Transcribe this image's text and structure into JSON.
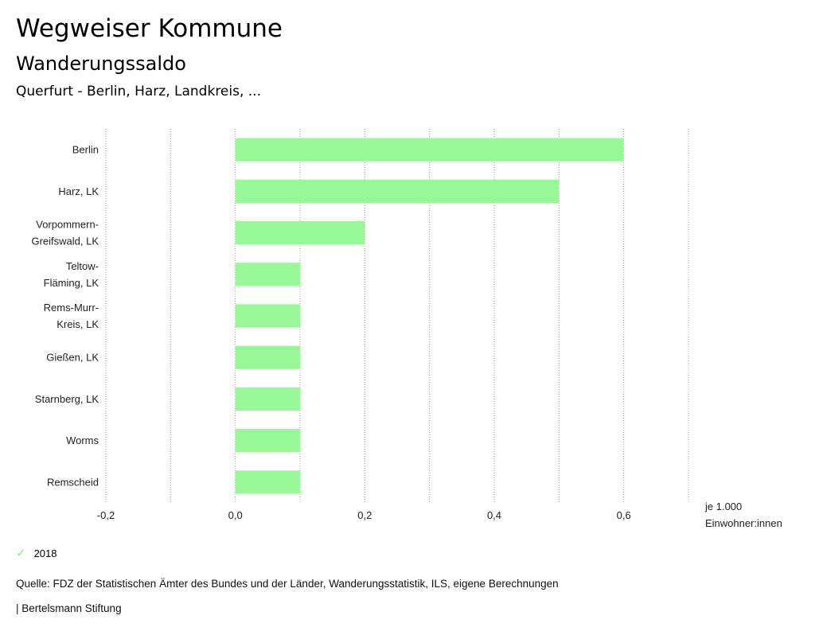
{
  "header": {
    "title": "Wegweiser Kommune",
    "subtitle": "Wanderungssaldo",
    "region": "Querfurt - Berlin, Harz, Landkreis, ..."
  },
  "chart_data": {
    "type": "bar",
    "orientation": "horizontal",
    "categories": [
      [
        "Berlin"
      ],
      [
        "Harz, LK"
      ],
      [
        "Vorpommern-",
        "Greifswald, LK"
      ],
      [
        "Teltow-",
        "Fläming, LK"
      ],
      [
        "Rems-Murr-",
        "Kreis, LK"
      ],
      [
        "Gießen, LK"
      ],
      [
        "Starnberg, LK"
      ],
      [
        "Worms"
      ],
      [
        "Remscheid"
      ]
    ],
    "series": [
      {
        "name": "2018",
        "color": "#98f898",
        "values": [
          0.6,
          0.5,
          0.2,
          0.1,
          0.1,
          0.1,
          0.1,
          0.1,
          0.1
        ]
      }
    ],
    "xlim": [
      -0.2,
      0.7
    ],
    "xticks": [
      -0.2,
      0.0,
      0.2,
      0.4,
      0.6
    ],
    "xtick_labels": [
      "-0,2",
      "0,0",
      "0,2",
      "0,4",
      "0,6"
    ],
    "gridlines": [
      -0.2,
      -0.1,
      0.0,
      0.1,
      0.2,
      0.3,
      0.4,
      0.5,
      0.6,
      0.7
    ],
    "unit_label": [
      "je 1.000",
      "Einwohner:innen"
    ],
    "legend_position": "bottom-left"
  },
  "legend": {
    "label": "2018",
    "icon": "check-icon",
    "color": "#98f898"
  },
  "footer": {
    "source": "Quelle: FDZ der Statistischen Ämter des Bundes und der Länder, Wanderungsstatistik, ILS, eigene Berechnungen",
    "publisher": "| Bertelsmann Stiftung"
  }
}
